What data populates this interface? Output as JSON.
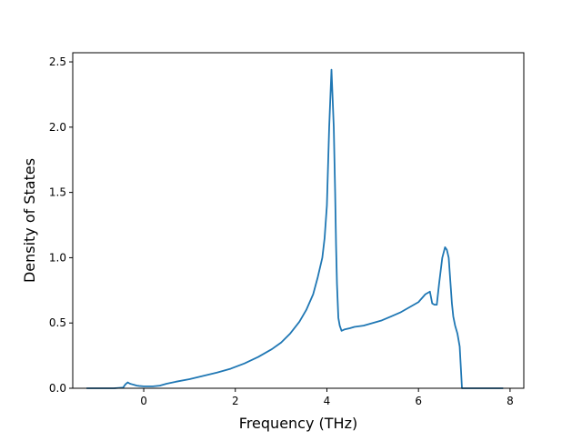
{
  "chart_data": {
    "type": "line",
    "title": "",
    "xlabel": "Frequency (THz)",
    "ylabel": "Density of States",
    "xlim": [
      -1.55,
      8.3
    ],
    "ylim": [
      0.0,
      2.57
    ],
    "xticks": [
      0,
      2,
      4,
      6,
      8
    ],
    "xtick_labels": [
      "0",
      "2",
      "4",
      "6",
      "8"
    ],
    "yticks": [
      0.0,
      0.5,
      1.0,
      1.5,
      2.0,
      2.5
    ],
    "ytick_labels": [
      "0.0",
      "0.5",
      "1.0",
      "1.5",
      "2.0",
      "2.5"
    ],
    "grid": false,
    "legend": "none",
    "series": [
      {
        "color": "#1f77b4",
        "x": [
          -1.25,
          -0.95,
          -0.65,
          -0.45,
          -0.4,
          -0.35,
          -0.3,
          -0.25,
          -0.2,
          -0.15,
          -0.1,
          0.0,
          0.2,
          0.35,
          0.5,
          0.7,
          1.0,
          1.3,
          1.6,
          1.9,
          2.2,
          2.5,
          2.8,
          3.0,
          3.2,
          3.4,
          3.55,
          3.7,
          3.8,
          3.9,
          3.95,
          4.0,
          4.05,
          4.1,
          4.15,
          4.18,
          4.2,
          4.22,
          4.25,
          4.28,
          4.32,
          4.38,
          4.5,
          4.6,
          4.8,
          5.0,
          5.2,
          5.4,
          5.6,
          5.8,
          6.0,
          6.15,
          6.25,
          6.3,
          6.35,
          6.4,
          6.45,
          6.52,
          6.58,
          6.62,
          6.66,
          6.7,
          6.73,
          6.76,
          6.8,
          6.85,
          6.9,
          6.95,
          7.0,
          7.05,
          7.08,
          7.12,
          7.3,
          7.6,
          7.85
        ],
        "y": [
          0.0,
          0.0,
          0.0,
          0.005,
          0.03,
          0.045,
          0.035,
          0.03,
          0.025,
          0.02,
          0.018,
          0.015,
          0.015,
          0.02,
          0.035,
          0.05,
          0.07,
          0.095,
          0.12,
          0.15,
          0.19,
          0.24,
          0.3,
          0.35,
          0.42,
          0.51,
          0.6,
          0.72,
          0.85,
          1.0,
          1.15,
          1.4,
          2.0,
          2.44,
          2.0,
          1.5,
          1.1,
          0.8,
          0.54,
          0.48,
          0.44,
          0.45,
          0.46,
          0.47,
          0.48,
          0.5,
          0.52,
          0.55,
          0.58,
          0.62,
          0.66,
          0.72,
          0.74,
          0.65,
          0.64,
          0.64,
          0.8,
          1.0,
          1.08,
          1.06,
          1.0,
          0.8,
          0.65,
          0.55,
          0.48,
          0.42,
          0.32,
          0.0,
          0.0,
          0.0,
          0.0,
          0.0,
          0.0,
          0.0,
          0.0
        ]
      }
    ]
  }
}
